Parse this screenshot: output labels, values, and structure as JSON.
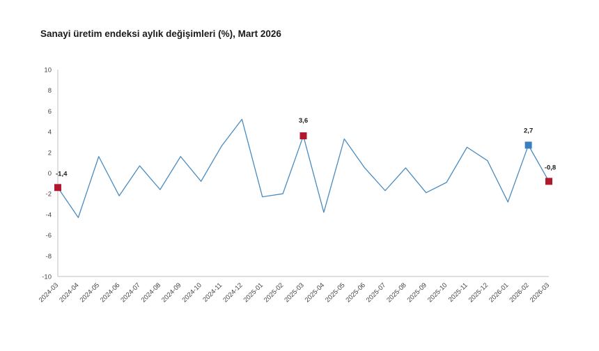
{
  "chart_data": {
    "type": "line",
    "title": "Sanayi üretim endeksi aylık değişimleri (%), Mart 2026",
    "xlabel": "",
    "ylabel": "",
    "ylim": [
      -10,
      10
    ],
    "yticks": [
      10,
      8,
      6,
      4,
      2,
      0,
      -2,
      -4,
      -6,
      -8,
      -10
    ],
    "grid": false,
    "legend": "none",
    "line_color": "#4a8bbf",
    "categories": [
      "2024-03",
      "2024-04",
      "2024-05",
      "2024-06",
      "2024-07",
      "2024-08",
      "2024-09",
      "2024-10",
      "2024-11",
      "2024-12",
      "2025-01",
      "2025-02",
      "2025-03",
      "2025-04",
      "2025-05",
      "2025-06",
      "2025-07",
      "2025-08",
      "2025-09",
      "2025-10",
      "2025-11",
      "2025-12",
      "2026-01",
      "2026-02",
      "2026-03"
    ],
    "series": [
      {
        "values": [
          -1.4,
          -4.3,
          1.6,
          -2.2,
          0.7,
          -1.6,
          1.6,
          -0.8,
          2.6,
          5.2,
          -2.3,
          -2.0,
          3.6,
          -3.8,
          3.3,
          0.5,
          -1.7,
          0.5,
          -1.9,
          -0.9,
          2.5,
          1.2,
          -2.8,
          2.7,
          -0.8
        ]
      }
    ],
    "highlights": [
      {
        "category": "2024-03",
        "value": -1.4,
        "label": "-1,4",
        "color": "#b2182b"
      },
      {
        "category": "2025-03",
        "value": 3.6,
        "label": "3,6",
        "color": "#b2182b"
      },
      {
        "category": "2026-02",
        "value": 2.7,
        "label": "2,7",
        "color": "#3a7fc0"
      },
      {
        "category": "2026-03",
        "value": -0.8,
        "label": "-0,8",
        "color": "#b2182b"
      }
    ]
  }
}
